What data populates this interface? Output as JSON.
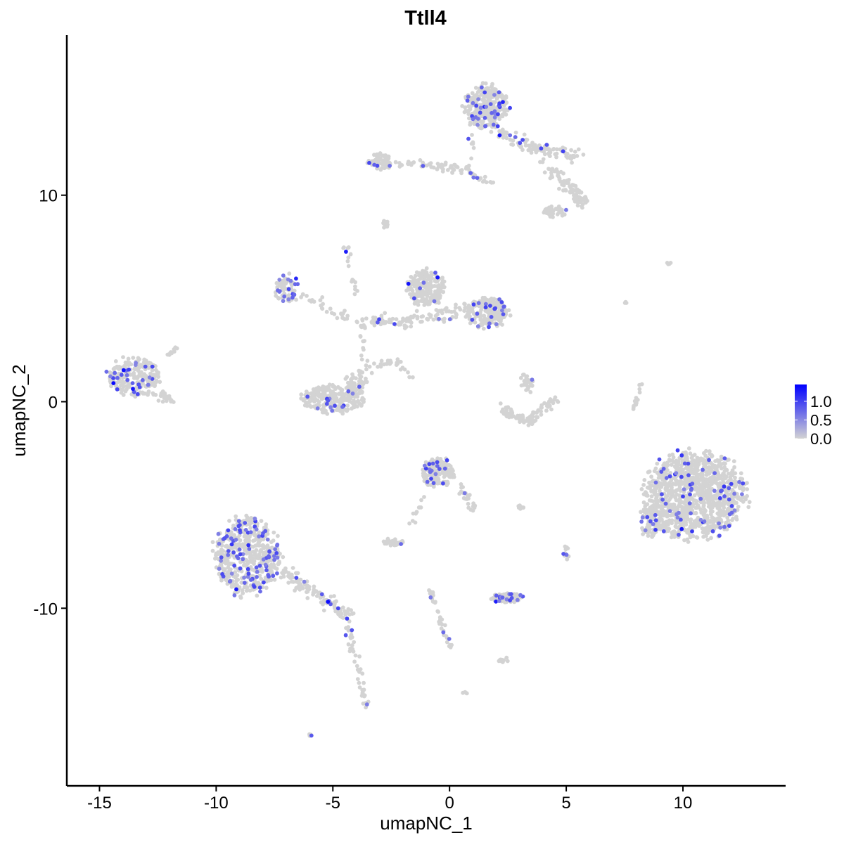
{
  "chart_data": {
    "type": "scatter",
    "title": "Ttll4",
    "xlabel": "umapNC_1",
    "ylabel": "umapNC_2",
    "xlim": [
      -16.4,
      14.4
    ],
    "ylim": [
      -18.6,
      17.75
    ],
    "xticks": [
      -15,
      -10,
      -5,
      0,
      5,
      10
    ],
    "yticks": [
      -10,
      0,
      10
    ],
    "xtick_labels": [
      "-15",
      "-10",
      "-5",
      "0",
      "5",
      "10"
    ],
    "ytick_labels": [
      "-10",
      "0",
      "10"
    ],
    "grid": false,
    "legend": {
      "placement": "right",
      "type": "colorbar",
      "range": [
        0.0,
        1.45
      ],
      "ticks": [
        0.0,
        0.5,
        1.0
      ],
      "tick_labels": [
        "0.0",
        "0.5",
        "1.0"
      ],
      "low_color": "#d3d3d3",
      "high_color": "#0000ff"
    },
    "colors": {
      "low": "#d3d3d3",
      "high": "#0000ff"
    },
    "note_clusters_approximate": true,
    "clusters": [
      {
        "shape": "blob",
        "x": 1.57,
        "y": 14.3,
        "rx": 1.06,
        "ry": 1.15,
        "n": 320,
        "expr": 0.09
      },
      {
        "shape": "strand",
        "pts": [
          [
            1.87,
            13.15
          ],
          [
            3.68,
            12.3
          ],
          [
            5.49,
            11.96
          ]
        ],
        "w": 0.35,
        "n": 110,
        "expr": 0.05
      },
      {
        "shape": "strand",
        "pts": [
          [
            3.98,
            11.62
          ],
          [
            5.19,
            10.26
          ],
          [
            5.79,
            9.57
          ]
        ],
        "w": 0.3,
        "n": 90,
        "expr": 0.04
      },
      {
        "shape": "blob",
        "x": 4.5,
        "y": 9.2,
        "rx": 0.6,
        "ry": 0.3,
        "n": 40,
        "expr": 0.03
      },
      {
        "shape": "blob",
        "x": -2.96,
        "y": 11.62,
        "rx": 0.6,
        "ry": 0.45,
        "n": 70,
        "expr": 0.04
      },
      {
        "shape": "strand",
        "pts": [
          [
            -2.35,
            11.62
          ],
          [
            0.66,
            11.28
          ]
        ],
        "w": 0.2,
        "n": 50,
        "expr": 0.02
      },
      {
        "shape": "strand",
        "pts": [
          [
            0.97,
            13.66
          ],
          [
            0.81,
            11.11
          ],
          [
            1.8,
            10.6
          ]
        ],
        "w": 0.15,
        "n": 30,
        "expr": 0.02
      },
      {
        "shape": "blob",
        "x": -2.8,
        "y": 8.6,
        "rx": 0.25,
        "ry": 0.2,
        "n": 10,
        "expr": 0
      },
      {
        "shape": "blob",
        "x": -1.0,
        "y": 5.5,
        "rx": 0.9,
        "ry": 1.0,
        "n": 220,
        "expr": 0.06
      },
      {
        "shape": "blob",
        "x": 1.6,
        "y": 4.3,
        "rx": 1.05,
        "ry": 0.8,
        "n": 200,
        "expr": 0.08
      },
      {
        "shape": "strand",
        "pts": [
          [
            -2.35,
            3.78
          ],
          [
            0.66,
            4.46
          ]
        ],
        "w": 0.35,
        "n": 70,
        "expr": 0.04
      },
      {
        "shape": "blob",
        "x": -7.0,
        "y": 5.5,
        "rx": 0.6,
        "ry": 0.75,
        "n": 70,
        "expr": 0.2
      },
      {
        "shape": "strand",
        "pts": [
          [
            -6.57,
            5.14
          ],
          [
            -3.86,
            3.78
          ],
          [
            -2.5,
            4.0
          ]
        ],
        "w": 0.3,
        "n": 70,
        "expr": 0.03
      },
      {
        "shape": "strand",
        "pts": [
          [
            -4.46,
            7.53
          ],
          [
            -4.01,
            5.14
          ]
        ],
        "w": 0.12,
        "n": 18,
        "expr": 0.05
      },
      {
        "shape": "strand",
        "pts": [
          [
            -3.8,
            3.5
          ],
          [
            -3.6,
            1.5
          ],
          [
            -2.3,
            2.0
          ],
          [
            -1.5,
            0.9
          ]
        ],
        "w": 0.2,
        "n": 40,
        "expr": 0
      },
      {
        "shape": "blob",
        "x": -5.0,
        "y": 0.1,
        "rx": 1.5,
        "ry": 0.75,
        "n": 230,
        "expr": 0.04
      },
      {
        "shape": "blob",
        "x": -4.0,
        "y": 0.9,
        "rx": 0.5,
        "ry": 0.7,
        "n": 60,
        "expr": 0.02
      },
      {
        "shape": "blob",
        "x": -13.5,
        "y": 1.2,
        "rx": 1.3,
        "ry": 1.1,
        "n": 230,
        "expr": 0.15
      },
      {
        "shape": "strand",
        "pts": [
          [
            -12.6,
            0.6
          ],
          [
            -11.9,
            0.0
          ]
        ],
        "w": 0.25,
        "n": 25,
        "expr": 0
      },
      {
        "shape": "strand",
        "pts": [
          [
            -12.0,
            2.3
          ],
          [
            -11.4,
            2.8
          ]
        ],
        "w": 0.1,
        "n": 10,
        "expr": 0
      },
      {
        "shape": "blob",
        "x": 3.3,
        "y": 0.9,
        "rx": 0.35,
        "ry": 0.5,
        "n": 25,
        "expr": 0.1
      },
      {
        "shape": "strand",
        "pts": [
          [
            2.17,
            -0.31
          ],
          [
            3.38,
            -0.99
          ],
          [
            4.43,
            0.14
          ]
        ],
        "w": 0.25,
        "n": 90,
        "expr": 0
      },
      {
        "shape": "blob",
        "x": 10.5,
        "y": -4.5,
        "rx": 2.4,
        "ry": 2.35,
        "n": 1100,
        "expr": 0.05
      },
      {
        "shape": "blob",
        "x": 8.6,
        "y": -5.8,
        "rx": 0.5,
        "ry": 0.9,
        "n": 80,
        "expr": 0.05
      },
      {
        "shape": "blob",
        "x": -0.5,
        "y": -3.4,
        "rx": 0.8,
        "ry": 0.8,
        "n": 180,
        "expr": 0.08
      },
      {
        "shape": "strand",
        "pts": [
          [
            0.4,
            -4.0
          ],
          [
            1.2,
            -5.4
          ]
        ],
        "w": 0.2,
        "n": 25,
        "expr": 0.03
      },
      {
        "shape": "blob",
        "x": -8.7,
        "y": -7.5,
        "rx": 1.6,
        "ry": 2.1,
        "n": 520,
        "expr": 0.16
      },
      {
        "shape": "strand",
        "pts": [
          [
            -7.18,
            -8.14
          ],
          [
            -4.16,
            -10.53
          ]
        ],
        "w": 0.35,
        "n": 120,
        "expr": 0.15
      },
      {
        "shape": "strand",
        "pts": [
          [
            -4.4,
            -10.8
          ],
          [
            -3.9,
            -13.0
          ],
          [
            -3.5,
            -15.0
          ]
        ],
        "w": 0.15,
        "n": 45,
        "expr": 0.08
      },
      {
        "shape": "strand",
        "pts": [
          [
            -1.1,
            -4.6
          ],
          [
            -1.7,
            -6.0
          ]
        ],
        "w": 0.1,
        "n": 12,
        "expr": 0.1
      },
      {
        "shape": "blob",
        "x": -2.4,
        "y": -6.8,
        "rx": 0.5,
        "ry": 0.2,
        "n": 35,
        "expr": 0.03
      },
      {
        "shape": "strand",
        "pts": [
          [
            -0.84,
            -9.17
          ],
          [
            0.06,
            -11.9
          ]
        ],
        "w": 0.12,
        "n": 35,
        "expr": 0.03
      },
      {
        "shape": "blob",
        "x": 2.5,
        "y": -9.5,
        "rx": 0.8,
        "ry": 0.25,
        "n": 70,
        "expr": 0.15
      },
      {
        "shape": "blob",
        "x": 2.3,
        "y": -12.5,
        "rx": 0.3,
        "ry": 0.15,
        "n": 12,
        "expr": 0
      },
      {
        "shape": "blob",
        "x": 3.1,
        "y": -5.1,
        "rx": 0.3,
        "ry": 0.1,
        "n": 8,
        "expr": 0
      },
      {
        "shape": "blob",
        "x": 5.0,
        "y": -7.3,
        "rx": 0.15,
        "ry": 0.4,
        "n": 10,
        "expr": 0.2
      },
      {
        "shape": "blob",
        "x": 0.66,
        "y": -14.1,
        "rx": 0.1,
        "ry": 0.1,
        "n": 4,
        "expr": 0
      },
      {
        "shape": "blob",
        "x": -5.97,
        "y": -16.15,
        "rx": 0.1,
        "ry": 0.1,
        "n": 4,
        "expr": 0.3
      },
      {
        "shape": "strand",
        "pts": [
          [
            7.75,
            -1.0
          ],
          [
            8.2,
            0.9
          ]
        ],
        "w": 0.08,
        "n": 14,
        "expr": 0
      },
      {
        "shape": "blob",
        "x": 9.4,
        "y": 6.7,
        "rx": 0.2,
        "ry": 0.05,
        "n": 4,
        "expr": 0
      },
      {
        "shape": "blob",
        "x": 7.6,
        "y": 4.8,
        "rx": 0.15,
        "ry": 0.2,
        "n": 3,
        "expr": 0
      }
    ]
  }
}
